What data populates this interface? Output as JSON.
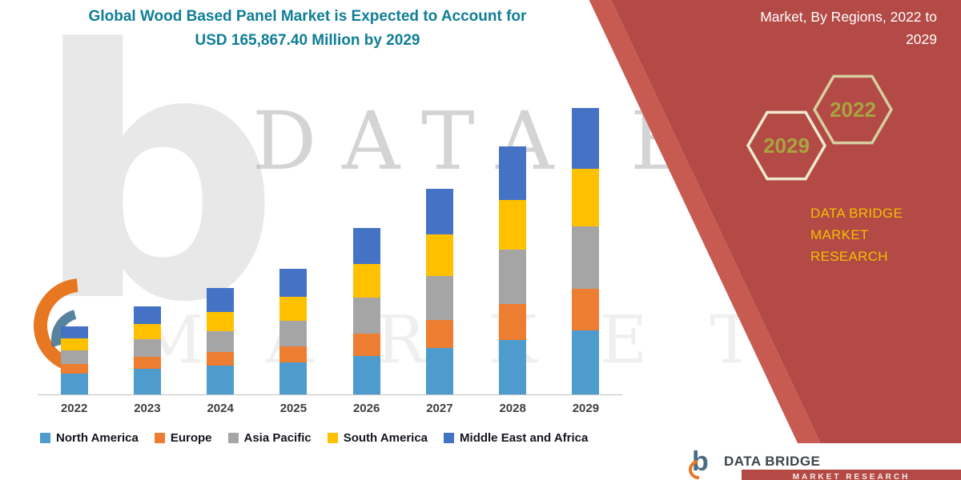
{
  "title": {
    "line1": "Global Wood Based Panel Market is Expected to Account for",
    "line2": "USD 165,867.40 Million by 2029",
    "color": "#0F7E96"
  },
  "header_right": {
    "line1": "Market, By Regions, 2022 to",
    "line2": "2029"
  },
  "hexagons": {
    "left_year": "2029",
    "right_year": "2022",
    "text_color": "#A9A440"
  },
  "brand_panel": {
    "line1": "DATA BRIDGE MARKET",
    "line2": "RESEARCH",
    "text_color": "#F0C000",
    "panel_color": "#B34A45"
  },
  "watermark": {
    "line1": "DATA BRID",
    "line2": "M A R K E T  R E S"
  },
  "footer_logo": {
    "name": "DATA BRIDGE",
    "strip_text": "MARKET RESEARCH"
  },
  "chart_data": {
    "type": "bar",
    "stacked": true,
    "title": "Global Wood Based Panel Market is Expected to Account for USD 165,867.40 Million by 2029",
    "unit": "USD Million",
    "y_axis_visible": false,
    "gridlines": false,
    "legend_position": "bottom",
    "ylim": [
      0,
      170000
    ],
    "categories": [
      "2022",
      "2023",
      "2024",
      "2025",
      "2026",
      "2027",
      "2028",
      "2029"
    ],
    "series": [
      {
        "name": "North America",
        "color": "#4E9BCE",
        "values": [
          12000,
          14800,
          16700,
          18500,
          22200,
          26900,
          31500,
          37100
        ]
      },
      {
        "name": "Europe",
        "color": "#ED7D31",
        "values": [
          5600,
          7000,
          7900,
          9300,
          13000,
          16200,
          20800,
          24100
        ]
      },
      {
        "name": "Asia Pacific",
        "color": "#A5A5A5",
        "values": [
          7900,
          10200,
          12000,
          14800,
          20800,
          25500,
          31500,
          36100
        ]
      },
      {
        "name": "South America",
        "color": "#FFC000",
        "values": [
          7000,
          8800,
          11100,
          13900,
          19500,
          24100,
          28700,
          33400
        ]
      },
      {
        "name": "Middle East and Africa",
        "color": "#4472C4",
        "values": [
          7000,
          10200,
          13900,
          16200,
          20800,
          26400,
          31000,
          35200
        ]
      }
    ],
    "totals_estimated": [
      39500,
      51000,
      61600,
      72700,
      96300,
      119100,
      143500,
      165900
    ]
  }
}
